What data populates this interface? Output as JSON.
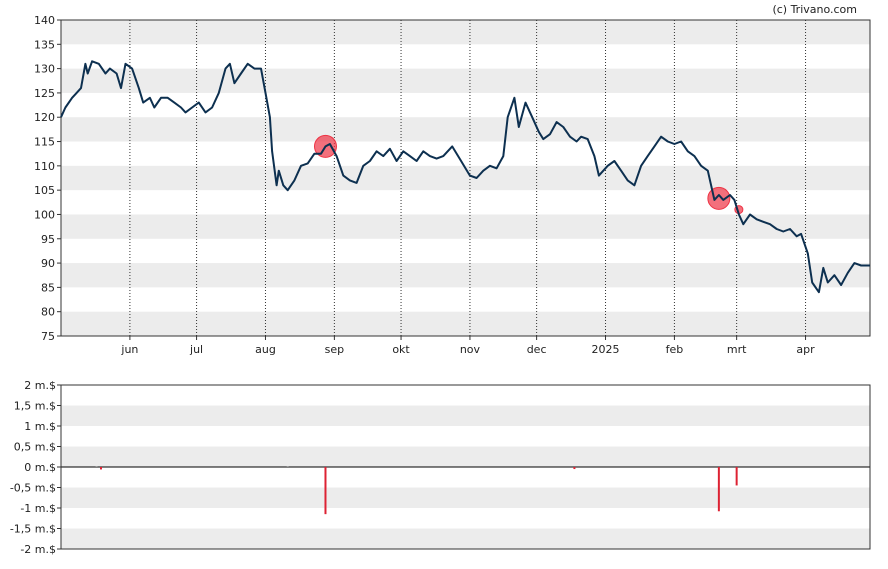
{
  "credit": "(c) Trivano.com",
  "chart_data": [
    {
      "type": "line",
      "title": "",
      "ylim": [
        75,
        140
      ],
      "y_ticks": [
        75,
        80,
        85,
        90,
        95,
        100,
        105,
        110,
        115,
        120,
        125,
        130,
        135,
        140
      ],
      "x_range": [
        "2024-05-01",
        "2025-04-30"
      ],
      "month_ticks": [
        {
          "label": "jun",
          "date": "2024-06-01"
        },
        {
          "label": "jul",
          "date": "2024-07-01"
        },
        {
          "label": "aug",
          "date": "2024-08-01"
        },
        {
          "label": "sep",
          "date": "2024-09-01"
        },
        {
          "label": "okt",
          "date": "2024-10-01"
        },
        {
          "label": "nov",
          "date": "2024-11-01"
        },
        {
          "label": "dec",
          "date": "2024-12-01"
        },
        {
          "label": "2025",
          "date": "2025-01-01"
        },
        {
          "label": "feb",
          "date": "2025-02-01"
        },
        {
          "label": "mrt",
          "date": "2025-03-01"
        },
        {
          "label": "apr",
          "date": "2025-04-01"
        }
      ],
      "grid": true,
      "line_color": "#0d3050",
      "series": [
        {
          "values": [
            [
              "2024-05-01",
              120
            ],
            [
              "2024-05-03",
              122
            ],
            [
              "2024-05-06",
              124
            ],
            [
              "2024-05-08",
              125
            ],
            [
              "2024-05-10",
              126
            ],
            [
              "2024-05-12",
              131
            ],
            [
              "2024-05-13",
              129
            ],
            [
              "2024-05-15",
              131.5
            ],
            [
              "2024-05-18",
              131
            ],
            [
              "2024-05-21",
              129
            ],
            [
              "2024-05-23",
              130
            ],
            [
              "2024-05-26",
              129
            ],
            [
              "2024-05-28",
              126
            ],
            [
              "2024-05-30",
              131
            ],
            [
              "2024-06-02",
              130
            ],
            [
              "2024-06-05",
              126
            ],
            [
              "2024-06-07",
              123
            ],
            [
              "2024-06-10",
              124
            ],
            [
              "2024-06-12",
              122
            ],
            [
              "2024-06-15",
              124
            ],
            [
              "2024-06-18",
              124
            ],
            [
              "2024-06-21",
              123
            ],
            [
              "2024-06-24",
              122
            ],
            [
              "2024-06-26",
              121
            ],
            [
              "2024-06-29",
              122
            ],
            [
              "2024-07-02",
              123
            ],
            [
              "2024-07-05",
              121
            ],
            [
              "2024-07-08",
              122
            ],
            [
              "2024-07-11",
              125
            ],
            [
              "2024-07-14",
              130
            ],
            [
              "2024-07-16",
              131
            ],
            [
              "2024-07-18",
              127
            ],
            [
              "2024-07-21",
              129
            ],
            [
              "2024-07-24",
              131
            ],
            [
              "2024-07-27",
              130
            ],
            [
              "2024-07-30",
              130
            ],
            [
              "2024-08-01",
              125
            ],
            [
              "2024-08-03",
              120
            ],
            [
              "2024-08-04",
              113
            ],
            [
              "2024-08-06",
              106
            ],
            [
              "2024-08-07",
              109
            ],
            [
              "2024-08-09",
              106
            ],
            [
              "2024-08-11",
              105
            ],
            [
              "2024-08-14",
              107
            ],
            [
              "2024-08-17",
              110
            ],
            [
              "2024-08-20",
              110.5
            ],
            [
              "2024-08-23",
              112.5
            ],
            [
              "2024-08-26",
              112.5
            ],
            [
              "2024-08-28",
              114
            ],
            [
              "2024-08-30",
              114.5
            ],
            [
              "2024-09-02",
              112
            ],
            [
              "2024-09-05",
              108
            ],
            [
              "2024-09-08",
              107
            ],
            [
              "2024-09-11",
              106.5
            ],
            [
              "2024-09-14",
              110
            ],
            [
              "2024-09-17",
              111
            ],
            [
              "2024-09-20",
              113
            ],
            [
              "2024-09-23",
              112
            ],
            [
              "2024-09-26",
              113.5
            ],
            [
              "2024-09-29",
              111
            ],
            [
              "2024-10-02",
              113
            ],
            [
              "2024-10-05",
              112
            ],
            [
              "2024-10-08",
              111
            ],
            [
              "2024-10-11",
              113
            ],
            [
              "2024-10-14",
              112
            ],
            [
              "2024-10-17",
              111.5
            ],
            [
              "2024-10-20",
              112
            ],
            [
              "2024-10-24",
              114
            ],
            [
              "2024-10-28",
              111
            ],
            [
              "2024-11-01",
              108
            ],
            [
              "2024-11-04",
              107.5
            ],
            [
              "2024-11-07",
              109
            ],
            [
              "2024-11-10",
              110
            ],
            [
              "2024-11-13",
              109.5
            ],
            [
              "2024-11-16",
              112
            ],
            [
              "2024-11-18",
              120
            ],
            [
              "2024-11-21",
              124
            ],
            [
              "2024-11-23",
              118
            ],
            [
              "2024-11-26",
              123
            ],
            [
              "2024-11-29",
              120
            ],
            [
              "2024-12-02",
              117
            ],
            [
              "2024-12-04",
              115.5
            ],
            [
              "2024-12-07",
              116.5
            ],
            [
              "2024-12-10",
              119
            ],
            [
              "2024-12-13",
              118
            ],
            [
              "2024-12-16",
              116
            ],
            [
              "2024-12-19",
              115
            ],
            [
              "2024-12-21",
              116
            ],
            [
              "2024-12-24",
              115.5
            ],
            [
              "2024-12-27",
              112
            ],
            [
              "2024-12-29",
              108
            ],
            [
              "2025-01-02",
              110
            ],
            [
              "2025-01-05",
              111
            ],
            [
              "2025-01-08",
              109
            ],
            [
              "2025-01-11",
              107
            ],
            [
              "2025-01-14",
              106
            ],
            [
              "2025-01-17",
              110
            ],
            [
              "2025-01-20",
              112
            ],
            [
              "2025-01-23",
              114
            ],
            [
              "2025-01-26",
              116
            ],
            [
              "2025-01-29",
              115
            ],
            [
              "2025-02-01",
              114.5
            ],
            [
              "2025-02-04",
              115
            ],
            [
              "2025-02-07",
              113
            ],
            [
              "2025-02-10",
              112
            ],
            [
              "2025-02-13",
              110
            ],
            [
              "2025-02-16",
              109
            ],
            [
              "2025-02-19",
              103
            ],
            [
              "2025-02-21",
              104
            ],
            [
              "2025-02-23",
              103
            ],
            [
              "2025-02-26",
              104
            ],
            [
              "2025-02-28",
              103
            ],
            [
              "2025-03-02",
              100
            ],
            [
              "2025-03-04",
              98
            ],
            [
              "2025-03-07",
              100
            ],
            [
              "2025-03-10",
              99
            ],
            [
              "2025-03-13",
              98.5
            ],
            [
              "2025-03-16",
              98
            ],
            [
              "2025-03-19",
              97
            ],
            [
              "2025-03-22",
              96.5
            ],
            [
              "2025-03-25",
              97
            ],
            [
              "2025-03-28",
              95.5
            ],
            [
              "2025-03-30",
              96
            ],
            [
              "2025-04-02",
              92
            ],
            [
              "2025-04-04",
              86
            ],
            [
              "2025-04-07",
              84
            ],
            [
              "2025-04-09",
              89
            ],
            [
              "2025-04-11",
              86
            ],
            [
              "2025-04-14",
              87.5
            ],
            [
              "2025-04-17",
              85.5
            ],
            [
              "2025-04-20",
              88
            ],
            [
              "2025-04-23",
              90
            ],
            [
              "2025-04-26",
              89.5
            ],
            [
              "2025-04-30",
              89.5
            ]
          ]
        }
      ],
      "markers": [
        {
          "date": "2024-08-28",
          "value": 114,
          "size": "large",
          "color": "#ee3344"
        },
        {
          "date": "2025-02-21",
          "value": 103.3,
          "size": "large",
          "color": "#ee3344"
        },
        {
          "date": "2025-03-02",
          "value": 101,
          "size": "small",
          "color": "#ee3344"
        }
      ]
    },
    {
      "type": "bar",
      "title": "",
      "ylim": [
        -2,
        2
      ],
      "y_ticks": [
        {
          "value": 2,
          "label": "2 m.$"
        },
        {
          "value": 1.5,
          "label": "1,5 m.$"
        },
        {
          "value": 1,
          "label": "1 m.$"
        },
        {
          "value": 0.5,
          "label": "0,5 m.$"
        },
        {
          "value": 0,
          "label": "0 m.$"
        },
        {
          "value": -0.5,
          "label": "-0,5 m.$"
        },
        {
          "value": -1,
          "label": "-1 m.$"
        },
        {
          "value": -1.5,
          "label": "-1,5 m.$"
        },
        {
          "value": -2,
          "label": "-2 m.$"
        }
      ],
      "grid": true,
      "bar_color": "#dd2233",
      "bars": [
        {
          "date": "2024-05-17",
          "value": 0.01
        },
        {
          "date": "2024-05-19",
          "value": -0.06
        },
        {
          "date": "2024-08-11",
          "value": 0.01
        },
        {
          "date": "2024-08-28",
          "value": -1.15
        },
        {
          "date": "2024-12-18",
          "value": -0.05
        },
        {
          "date": "2025-02-21",
          "value": -1.08
        },
        {
          "date": "2025-03-01",
          "value": -0.45
        }
      ]
    }
  ]
}
